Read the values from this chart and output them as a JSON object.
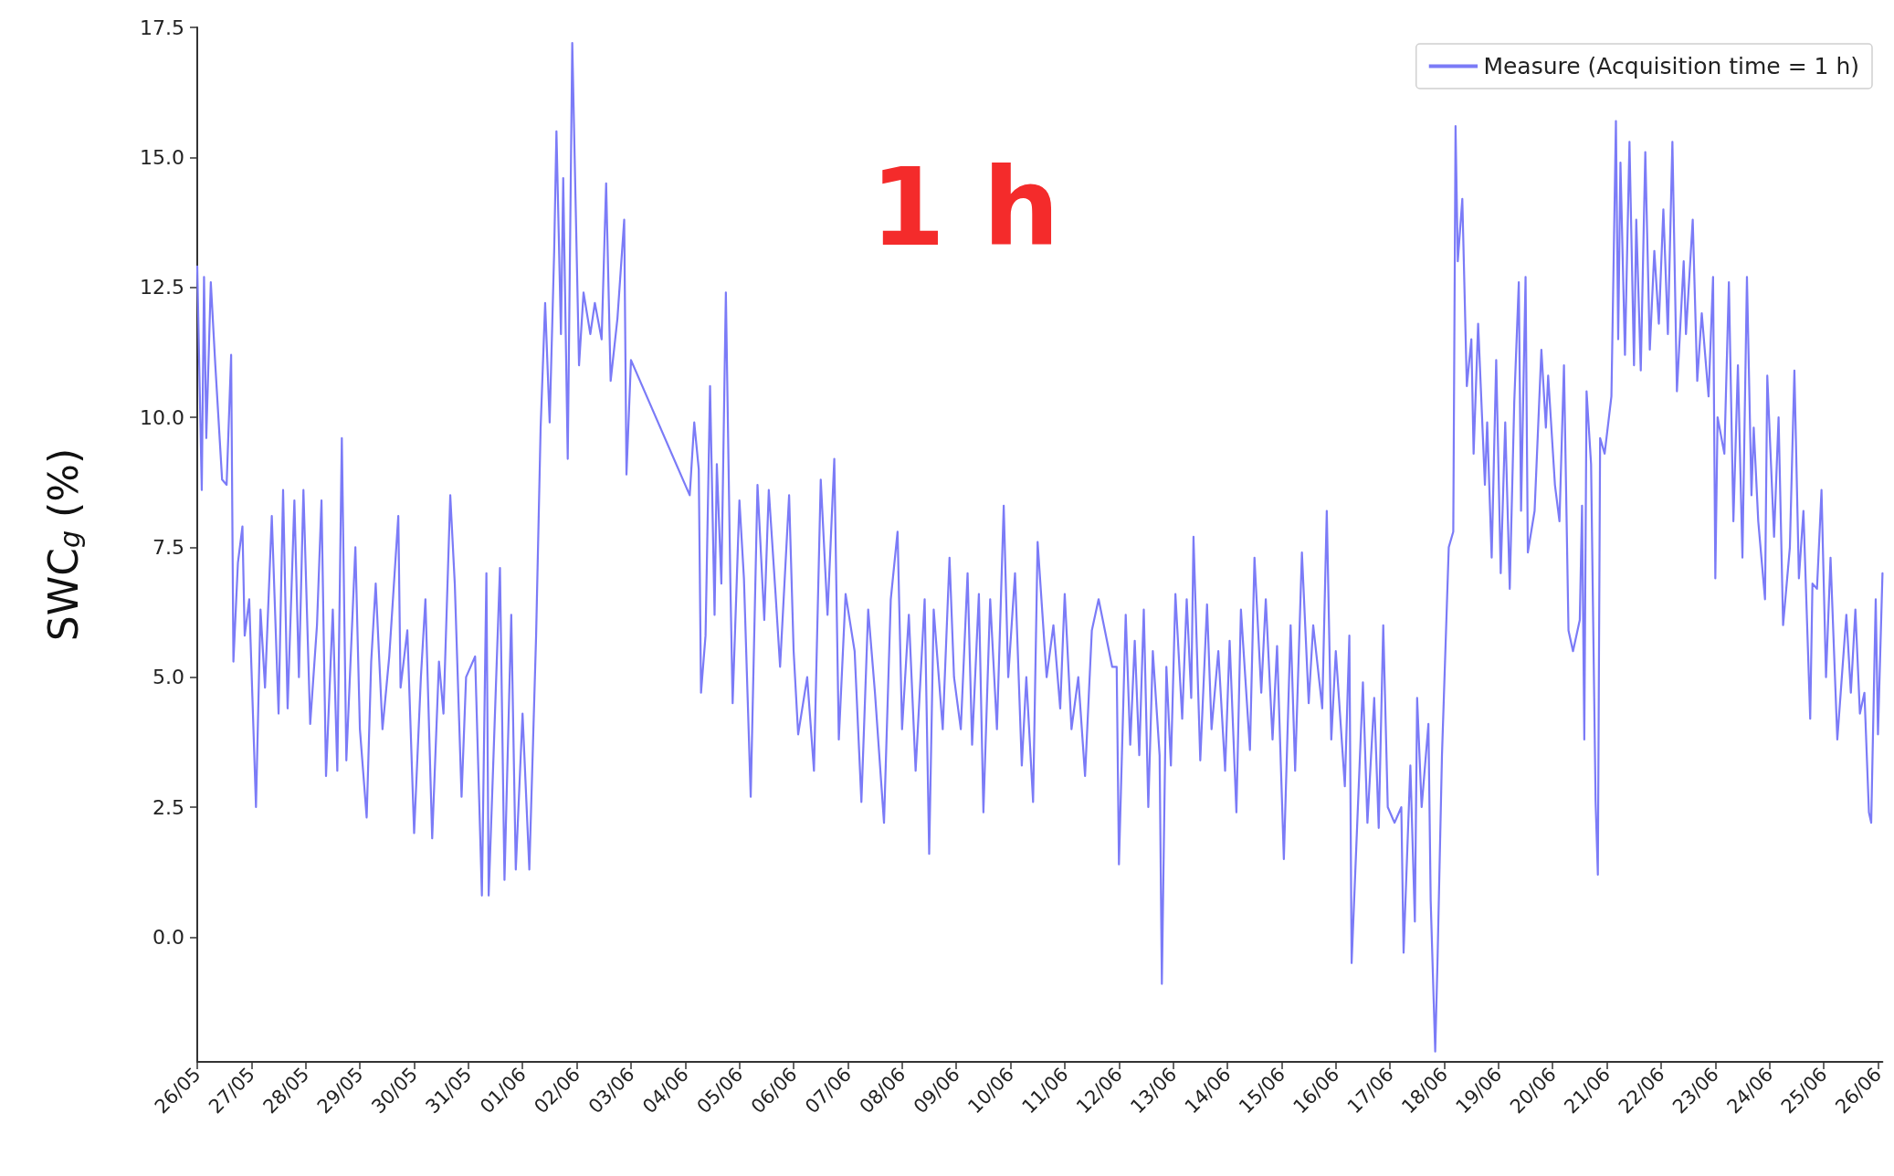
{
  "chart_data": {
    "type": "line",
    "ylabel": "SWC$_{g}$ (%)",
    "annotations": [
      "1 h"
    ],
    "x": [
      "--05-26T00:00",
      "--05-26T02:00",
      "--05-26T03:00",
      "--05-26T04:00",
      "--05-26T06:00",
      "--05-26T08:00",
      "--05-26T11:00",
      "--05-26T13:00",
      "--05-26T15:00",
      "--05-26T16:00",
      "--05-26T18:00",
      "--05-26T20:00",
      "--05-26T21:00",
      "--05-26T23:00",
      "--05-27T02:00",
      "--05-27T04:00",
      "--05-27T06:00",
      "--05-27T09:00",
      "--05-27T12:00",
      "--05-27T14:00",
      "--05-27T16:00",
      "--05-27T19:00",
      "--05-27T21:00",
      "--05-27T23:00",
      "--05-28T02:00",
      "--05-28T05:00",
      "--05-28T07:00",
      "--05-28T09:00",
      "--05-28T12:00",
      "--05-28T14:00",
      "--05-28T16:00",
      "--05-28T18:00",
      "--05-28T22:00",
      "--05-29T00:00",
      "--05-29T03:00",
      "--05-29T05:00",
      "--05-29T07:00",
      "--05-29T10:00",
      "--05-29T13:00",
      "--05-29T17:00",
      "--05-29T18:00",
      "--05-29T21:00",
      "--05-30T00:00",
      "--05-30T03:00",
      "--05-30T05:00",
      "--05-30T08:00",
      "--05-30T11:00",
      "--05-30T13:00",
      "--05-30T16:00",
      "--05-30T18:00",
      "--05-30T21:00",
      "--05-30T23:00",
      "--05-31T03:00",
      "--05-31T06:00",
      "--05-31T08:00",
      "--05-31T09:00",
      "--05-31T11:00",
      "--05-31T14:00",
      "--05-31T16:00",
      "--05-31T19:00",
      "--05-31T21:00",
      "--06-01T00:00",
      "--06-01T03:00",
      "--06-01T06:00",
      "--06-01T08:00",
      "--06-01T10:00",
      "--06-01T12:00",
      "--06-01T14:00",
      "--06-01T15:00",
      "--06-01T17:00",
      "--06-01T18:00",
      "--06-01T20:00",
      "--06-01T22:00",
      "--06-02T01:00",
      "--06-02T03:00",
      "--06-02T06:00",
      "--06-02T08:00",
      "--06-02T11:00",
      "--06-02T13:00",
      "--06-02T15:00",
      "--06-02T18:00",
      "--06-02T21:00",
      "--06-02T22:00",
      "--06-03T00:00",
      "--06-04T02:00",
      "--06-04T04:00",
      "--06-04T06:00",
      "--06-04T07:00",
      "--06-04T09:00",
      "--06-04T11:00",
      "--06-04T13:00",
      "--06-04T14:00",
      "--06-04T16:00",
      "--06-04T18:00",
      "--06-04T20:00",
      "--06-04T21:00",
      "--06-05T00:00",
      "--06-05T02:00",
      "--06-05T05:00",
      "--06-05T08:00",
      "--06-05T11:00",
      "--06-05T13:00",
      "--06-05T16:00",
      "--06-05T18:00",
      "--06-05T22:00",
      "--06-06T00:00",
      "--06-06T02:00",
      "--06-06T06:00",
      "--06-06T09:00",
      "--06-06T12:00",
      "--06-06T15:00",
      "--06-06T18:00",
      "--06-06T20:00",
      "--06-06T23:00",
      "--06-07T03:00",
      "--06-07T06:00",
      "--06-07T09:00",
      "--06-07T12:00",
      "--06-07T16:00",
      "--06-07T19:00",
      "--06-07T22:00",
      "--06-08T00:00",
      "--06-08T03:00",
      "--06-08T06:00",
      "--06-08T10:00",
      "--06-08T12:00",
      "--06-08T14:00",
      "--06-08T18:00",
      "--06-08T21:00",
      "--06-08T23:00",
      "--06-09T02:00",
      "--06-09T05:00",
      "--06-09T07:00",
      "--06-09T10:00",
      "--06-09T12:00",
      "--06-09T15:00",
      "--06-09T18:00",
      "--06-09T21:00",
      "--06-09T23:00",
      "--06-10T02:00",
      "--06-10T05:00",
      "--06-10T07:00",
      "--06-10T10:00",
      "--06-10T12:00",
      "--06-10T16:00",
      "--06-10T19:00",
      "--06-10T22:00",
      "--06-11T00:00",
      "--06-11T03:00",
      "--06-11T06:00",
      "--06-11T09:00",
      "--06-11T12:00",
      "--06-11T15:00",
      "--06-11T21:00",
      "--06-11T23:00",
      "--06-12T00:00",
      "--06-12T03:00",
      "--06-12T05:00",
      "--06-12T07:00",
      "--06-12T09:00",
      "--06-12T11:00",
      "--06-12T13:00",
      "--06-12T15:00",
      "--06-12T18:00",
      "--06-12T19:00",
      "--06-12T21:00",
      "--06-12T23:00",
      "--06-13T01:00",
      "--06-13T04:00",
      "--06-13T06:00",
      "--06-13T08:00",
      "--06-13T09:00",
      "--06-13T12:00",
      "--06-13T15:00",
      "--06-13T17:00",
      "--06-13T20:00",
      "--06-13T23:00",
      "--06-14T01:00",
      "--06-14T04:00",
      "--06-14T06:00",
      "--06-14T10:00",
      "--06-14T12:00",
      "--06-14T15:00",
      "--06-14T17:00",
      "--06-14T20:00",
      "--06-14T22:00",
      "--06-15T01:00",
      "--06-15T04:00",
      "--06-15T06:00",
      "--06-15T09:00",
      "--06-15T12:00",
      "--06-15T14:00",
      "--06-15T18:00",
      "--06-15T20:00",
      "--06-15T22:00",
      "--06-16T00:00",
      "--06-16T04:00",
      "--06-16T06:00",
      "--06-16T07:00",
      "--06-16T12:00",
      "--06-16T14:00",
      "--06-16T17:00",
      "--06-16T19:00",
      "--06-16T21:00",
      "--06-16T23:00",
      "--06-17T02:00",
      "--06-17T05:00",
      "--06-17T06:00",
      "--06-17T09:00",
      "--06-17T11:00",
      "--06-17T12:00",
      "--06-17T14:00",
      "--06-17T17:00",
      "--06-17T18:00",
      "--06-17T20:00",
      "--06-17T21:00",
      "--06-17T23:00",
      "--06-18T02:00",
      "--06-18T04:00",
      "--06-18T05:00",
      "--06-18T06:00",
      "--06-18T08:00",
      "--06-18T10:00",
      "--06-18T12:00",
      "--06-18T13:00",
      "--06-18T15:00",
      "--06-18T18:00",
      "--06-18T19:00",
      "--06-18T21:00",
      "--06-18T23:00",
      "--06-19T01:00",
      "--06-19T03:00",
      "--06-19T05:00",
      "--06-19T07:00",
      "--06-19T09:00",
      "--06-19T10:00",
      "--06-19T12:00",
      "--06-19T13:00",
      "--06-19T16:00",
      "--06-19T19:00",
      "--06-19T21:00",
      "--06-19T22:00",
      "--06-20T01:00",
      "--06-20T03:00",
      "--06-20T05:00",
      "--06-20T07:00",
      "--06-20T09:00",
      "--06-20T12:00",
      "--06-20T13:00",
      "--06-20T14:00",
      "--06-20T15:00",
      "--06-20T17:00",
      "--06-20T19:00",
      "--06-20T20:00",
      "--06-20T21:00",
      "--06-20T23:00",
      "--06-21T02:00",
      "--06-21T04:00",
      "--06-21T05:00",
      "--06-21T06:00",
      "--06-21T08:00",
      "--06-21T10:00",
      "--06-21T12:00",
      "--06-21T13:00",
      "--06-21T15:00",
      "--06-21T17:00",
      "--06-21T19:00",
      "--06-21T21:00",
      "--06-21T23:00",
      "--06-22T01:00",
      "--06-22T03:00",
      "--06-22T05:00",
      "--06-22T07:00",
      "--06-22T10:00",
      "--06-22T11:00",
      "--06-22T14:00",
      "--06-22T16:00",
      "--06-22T18:00",
      "--06-22T21:00",
      "--06-22T23:00",
      "--06-23T00:00",
      "--06-23T01:00",
      "--06-23T04:00",
      "--06-23T06:00",
      "--06-23T08:00",
      "--06-23T10:00",
      "--06-23T12:00",
      "--06-23T14:00",
      "--06-23T16:00",
      "--06-23T17:00",
      "--06-23T19:00",
      "--06-23T22:00",
      "--06-23T23:00",
      "--06-24T02:00",
      "--06-24T04:00",
      "--06-24T06:00",
      "--06-24T09:00",
      "--06-24T11:00",
      "--06-24T13:00",
      "--06-24T15:00",
      "--06-24T18:00",
      "--06-24T19:00",
      "--06-24T21:00",
      "--06-24T23:00",
      "--06-25T01:00",
      "--06-25T03:00",
      "--06-25T06:00",
      "--06-25T08:00",
      "--06-25T10:00",
      "--06-25T12:00",
      "--06-25T14:00",
      "--06-25T16:00",
      "--06-25T18:00",
      "--06-25T20:00",
      "--06-25T21:00",
      "--06-25T23:00",
      "--06-26T00:00",
      "--06-26T02:00"
    ],
    "series": [
      {
        "name": "Measure (Acquisition time = 1 h)",
        "color": "#7b7bf7",
        "values": [
          12.9,
          8.6,
          12.7,
          9.6,
          12.6,
          11,
          8.8,
          8.7,
          11.2,
          5.3,
          7.2,
          7.9,
          5.8,
          6.5,
          2.5,
          6.3,
          4.8,
          8.1,
          4.3,
          8.6,
          4.4,
          8.4,
          5,
          8.6,
          4.1,
          6,
          8.4,
          3.1,
          6.3,
          3.2,
          9.6,
          3.4,
          7.5,
          4,
          2.3,
          5.3,
          6.8,
          4,
          5.4,
          8.1,
          4.8,
          5.9,
          2,
          5,
          6.5,
          1.9,
          5.3,
          4.3,
          8.5,
          6.8,
          2.7,
          5,
          5.4,
          0.8,
          7,
          0.8,
          3.3,
          7.1,
          1.1,
          6.2,
          1.3,
          4.3,
          1.3,
          5.8,
          9.8,
          12.2,
          9.9,
          13.2,
          15.5,
          11.6,
          14.6,
          9.2,
          17.2,
          11,
          12.4,
          11.6,
          12.2,
          11.5,
          14.5,
          10.7,
          11.9,
          13.8,
          8.9,
          11.1,
          8.5,
          9.9,
          9,
          4.7,
          5.8,
          10.6,
          6.2,
          9.1,
          6.8,
          12.4,
          6.8,
          4.5,
          8.4,
          6.9,
          2.7,
          8.7,
          6.1,
          8.6,
          6.6,
          5.2,
          8.5,
          5.5,
          3.9,
          5,
          3.2,
          8.8,
          6.2,
          9.2,
          3.8,
          6.6,
          5.5,
          2.6,
          6.3,
          4.7,
          2.2,
          6.5,
          7.8,
          4,
          6.2,
          3.2,
          6.5,
          1.6,
          6.3,
          4,
          7.3,
          5,
          4,
          7,
          3.7,
          6.6,
          2.4,
          6.5,
          4,
          8.3,
          5,
          7,
          3.3,
          5,
          2.6,
          7.6,
          5,
          6,
          4.4,
          6.6,
          4,
          5,
          3.1,
          5.9,
          6.5,
          5.2,
          5.2,
          1.4,
          6.2,
          3.7,
          5.7,
          3.5,
          6.3,
          2.5,
          5.5,
          3.5,
          -0.9,
          5.2,
          3.3,
          6.6,
          4.2,
          6.5,
          4.6,
          7.7,
          3.4,
          6.4,
          4,
          5.5,
          3.2,
          5.7,
          2.4,
          6.3,
          3.6,
          7.3,
          4.7,
          6.5,
          3.8,
          5.6,
          1.5,
          6,
          3.2,
          7.4,
          4.5,
          6,
          4.4,
          8.2,
          3.8,
          5.5,
          2.9,
          5.8,
          -0.5,
          4.9,
          2.2,
          4.6,
          2.1,
          6,
          2.5,
          2.2,
          2.5,
          -0.3,
          3.3,
          0.3,
          4.6,
          2.5,
          4.1,
          0.7,
          -2.2,
          -0.5,
          3.5,
          7.5,
          7.8,
          15.6,
          13,
          14.2,
          10.6,
          11.5,
          9.3,
          11.8,
          8.7,
          9.9,
          7.3,
          11.1,
          7,
          9.9,
          6.7,
          10.3,
          12.6,
          8.2,
          12.7,
          7.4,
          8.2,
          11.3,
          9.8,
          10.8,
          8.7,
          8,
          11,
          5.9,
          5.5,
          6.1,
          8.3,
          3.8,
          10.5,
          9.1,
          2.6,
          1.2,
          9.6,
          9.3,
          10.4,
          15.7,
          11.5,
          14.9,
          11.2,
          15.3,
          11,
          13.8,
          10.9,
          15.1,
          11.3,
          13.2,
          11.8,
          14,
          11.6,
          15.3,
          10.5,
          13,
          11.6,
          13.8,
          10.7,
          12,
          10.4,
          12.7,
          6.9,
          10,
          9.3,
          12.6,
          8,
          11,
          7.3,
          12.7,
          8.5,
          9.8,
          8,
          6.5,
          10.8,
          7.7,
          10,
          6,
          7.5,
          10.9,
          6.9,
          8.2,
          4.2,
          6.8,
          6.7,
          8.6,
          5,
          7.3,
          3.8,
          5,
          6.2,
          4.7,
          6.3,
          4.3,
          4.7,
          2.4,
          2.2,
          6.5,
          3.9,
          7
        ]
      }
    ],
    "xlim": [
      "--05-26",
      "--06-26T02:00"
    ],
    "xticks": [
      {
        "value": "--05-26",
        "label": "26/05"
      },
      {
        "value": "--05-27",
        "label": "27/05"
      },
      {
        "value": "--05-28",
        "label": "28/05"
      },
      {
        "value": "--05-29",
        "label": "29/05"
      },
      {
        "value": "--05-30",
        "label": "30/05"
      },
      {
        "value": "--05-31",
        "label": "31/05"
      },
      {
        "value": "--06-01",
        "label": "01/06"
      },
      {
        "value": "--06-02",
        "label": "02/06"
      },
      {
        "value": "--06-03",
        "label": "03/06"
      },
      {
        "value": "--06-04",
        "label": "04/06"
      },
      {
        "value": "--06-05",
        "label": "05/06"
      },
      {
        "value": "--06-06",
        "label": "06/06"
      },
      {
        "value": "--06-07",
        "label": "07/06"
      },
      {
        "value": "--06-08",
        "label": "08/06"
      },
      {
        "value": "--06-09",
        "label": "09/06"
      },
      {
        "value": "--06-10",
        "label": "10/06"
      },
      {
        "value": "--06-11",
        "label": "11/06"
      },
      {
        "value": "--06-12",
        "label": "12/06"
      },
      {
        "value": "--06-13",
        "label": "13/06"
      },
      {
        "value": "--06-14",
        "label": "14/06"
      },
      {
        "value": "--06-15",
        "label": "15/06"
      },
      {
        "value": "--06-16",
        "label": "16/06"
      },
      {
        "value": "--06-17",
        "label": "17/06"
      },
      {
        "value": "--06-18",
        "label": "18/06"
      },
      {
        "value": "--06-19",
        "label": "19/06"
      },
      {
        "value": "--06-20",
        "label": "20/06"
      },
      {
        "value": "--06-21",
        "label": "21/06"
      },
      {
        "value": "--06-22",
        "label": "22/06"
      },
      {
        "value": "--06-23",
        "label": "23/06"
      },
      {
        "value": "--06-24",
        "label": "24/06"
      },
      {
        "value": "--06-25",
        "label": "25/06"
      },
      {
        "value": "--06-26",
        "label": "26/06"
      }
    ],
    "ylim": [
      -2.4,
      17.5
    ],
    "yticks": [
      {
        "value": 0,
        "label": "0.0"
      },
      {
        "value": 2.5,
        "label": "2.5"
      },
      {
        "value": 5,
        "label": "5.0"
      },
      {
        "value": 7.5,
        "label": "7.5"
      },
      {
        "value": 10,
        "label": "10.0"
      },
      {
        "value": 12.5,
        "label": "12.5"
      },
      {
        "value": 15,
        "label": "15.0"
      },
      {
        "value": 17.5,
        "label": "17.5"
      }
    ],
    "grid": false,
    "legend": "top right",
    "marker": "none",
    "line_style": "solid"
  }
}
